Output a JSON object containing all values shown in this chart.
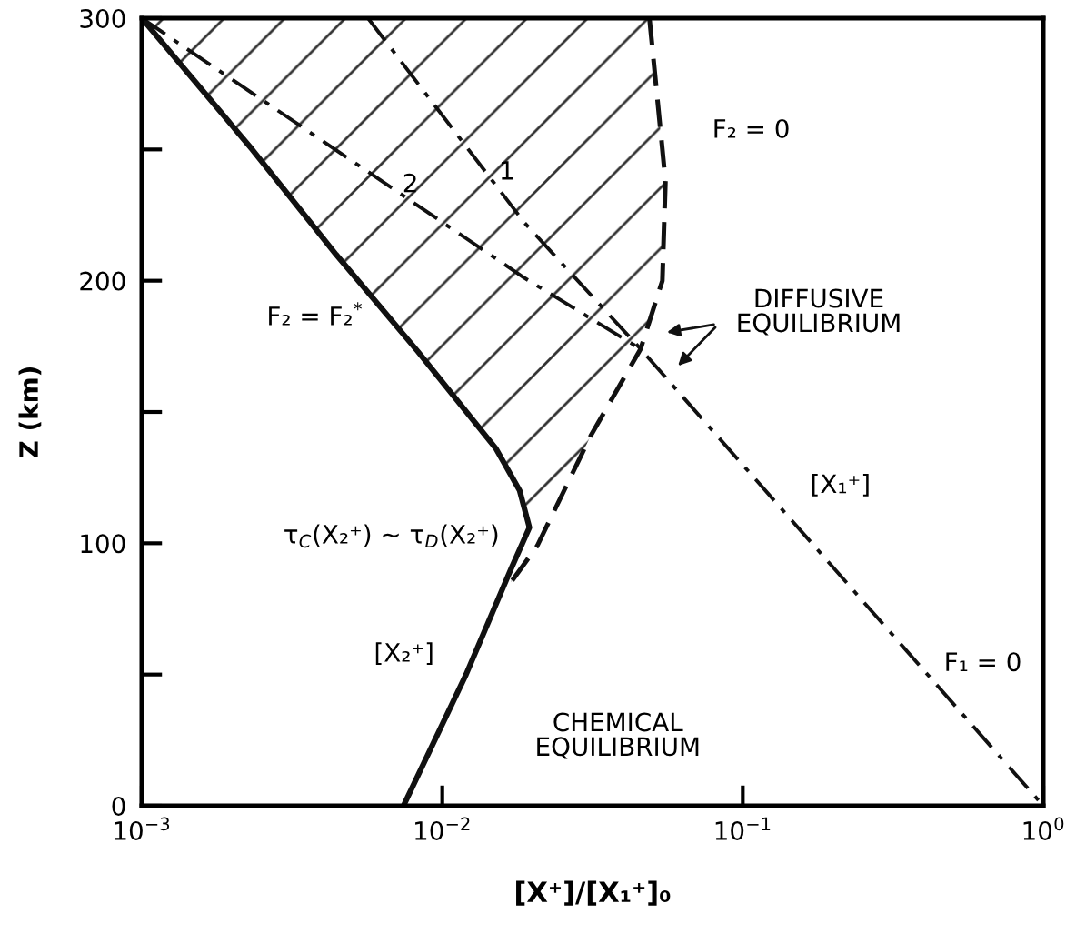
{
  "chart_data": {
    "type": "line",
    "xlabel": "[X⁺]/[X₁⁺]₀",
    "ylabel": "Z (km)",
    "log": "x",
    "grid": false,
    "legend": false,
    "marker": "none",
    "xlim": [
      0.001,
      1
    ],
    "ylim": [
      0,
      300
    ],
    "xticks": [
      {
        "value": 0.001,
        "label": "10$^{−3}$"
      },
      {
        "value": 0.01,
        "label": "10$^{−2}$"
      },
      {
        "value": 0.1,
        "label": "10$^{−1}$"
      },
      {
        "value": 1,
        "label": "10$^{0}$"
      }
    ],
    "yticks": [
      0,
      {
        "value": 50,
        "label": null
      },
      100,
      {
        "value": 150,
        "label": null
      },
      200,
      {
        "value": 250,
        "label": null
      },
      300
    ],
    "series": [
      {
        "color": "#111111",
        "line_style": "solid",
        "x": [
          0.001,
          0.00233,
          0.00443,
          0.0083,
          0.0151,
          0.0181,
          0.0195,
          0.0169,
          0.012,
          0.00743
        ],
        "values": [
          300,
          250,
          210,
          173,
          136,
          120,
          106,
          90,
          50,
          0
        ]
      },
      {
        "color": "#111111",
        "line_style": "dashed",
        "x": [
          0.0489,
          0.0553,
          0.054,
          0.0457,
          0.0312,
          0.0207,
          0.0169
        ],
        "values": [
          300,
          238,
          200,
          174,
          141,
          99,
          85
        ]
      },
      {
        "color": "#111111",
        "line_style": "dashdot",
        "x": [
          0.00566,
          0.0188,
          0.0457,
          1
        ],
        "values": [
          300,
          222,
          174,
          0
        ]
      },
      {
        "color": "#111111",
        "line_style": "dashdot",
        "x": [
          0.001,
          0.0188,
          0.0457
        ],
        "values": [
          300,
          201,
          174
        ]
      }
    ],
    "annotations": [
      "1",
      "2",
      "F₂ = 0",
      "DIFFUSIVE\nEQUILIBRIUM",
      "[X₁⁺]",
      "F₁ = 0",
      "F₂ = F₂$^{*}$",
      "τ$_{C}$(X₂⁺) ~ τ$_{D}$(X₂⁺)",
      "[X₂⁺]",
      "CHEMICAL\nEQUILIBRIUM"
    ]
  }
}
